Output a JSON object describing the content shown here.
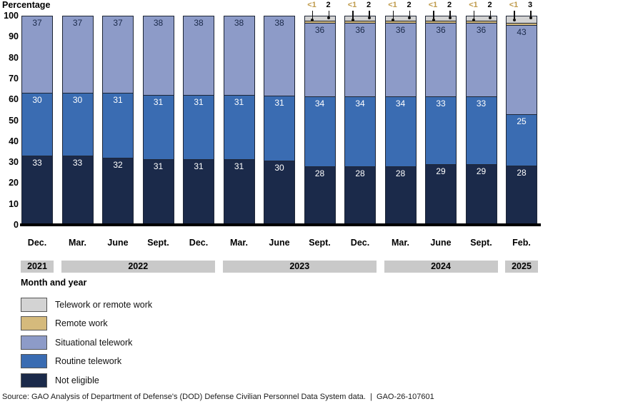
{
  "page": {
    "y_axis_title": "Percentage",
    "x_axis_title": "Month and year",
    "source_line": "Source: GAO Analysis of Department of Defense's (DOD) Defense Civilian Personnel Data System data.  |  GAO-26-107601"
  },
  "chart_data": {
    "type": "bar",
    "stacked": true,
    "title": "",
    "ylabel": "Percentage",
    "xlabel": "Month and year",
    "ylim": [
      0,
      100
    ],
    "yticks": [
      0,
      10,
      20,
      30,
      40,
      50,
      60,
      70,
      80,
      90,
      100
    ],
    "grid": false,
    "categories": [
      "Dec.",
      "Mar.",
      "June",
      "Sept.",
      "Dec.",
      "Mar.",
      "June",
      "Sept.",
      "Dec.",
      "Mar.",
      "June",
      "Sept.",
      "Feb."
    ],
    "year_groups": [
      {
        "label": "2021",
        "start": 0,
        "end": 0
      },
      {
        "label": "2022",
        "start": 1,
        "end": 4
      },
      {
        "label": "2023",
        "start": 5,
        "end": 8
      },
      {
        "label": "2024",
        "start": 9,
        "end": 11
      },
      {
        "label": "2025",
        "start": 12,
        "end": 12
      }
    ],
    "series": [
      {
        "name": "Not eligible",
        "color": "#1b2a4a",
        "label_color": "#ffffff",
        "values": [
          33,
          33,
          32,
          31,
          31,
          31,
          30,
          28,
          28,
          28,
          29,
          29,
          28
        ]
      },
      {
        "name": "Routine telework",
        "color": "#3a6cb2",
        "label_color": "#ffffff",
        "values": [
          30,
          30,
          31,
          31,
          31,
          31,
          31,
          34,
          34,
          34,
          33,
          33,
          25
        ]
      },
      {
        "name": "Situational telework",
        "color": "#8d9bc8",
        "label_color": "#1b2a4a",
        "values": [
          37,
          37,
          37,
          38,
          38,
          38,
          38,
          36,
          36,
          36,
          36,
          36,
          43
        ]
      },
      {
        "name": "Remote work",
        "color": "#d5ba7c",
        "annotation_color": "#bf9a4a",
        "labels": [
          null,
          null,
          null,
          null,
          null,
          null,
          null,
          "<1",
          "<1",
          "<1",
          "<1",
          "<1",
          "<1"
        ]
      },
      {
        "name": "Telework or remote work",
        "color": "#d3d3d3",
        "annotation_color": "#000000",
        "values": [
          null,
          null,
          null,
          null,
          null,
          null,
          null,
          2,
          2,
          2,
          2,
          2,
          3
        ]
      }
    ],
    "legend": {
      "position": "bottom-left",
      "entries": [
        {
          "label": "Telework or remote work",
          "color": "#d3d3d3"
        },
        {
          "label": "Remote work",
          "color": "#d5ba7c"
        },
        {
          "label": "Situational telework",
          "color": "#8d9bc8"
        },
        {
          "label": "Routine telework",
          "color": "#3a6cb2"
        },
        {
          "label": "Not eligible",
          "color": "#1b2a4a"
        }
      ]
    },
    "axis_line_color": "#000000"
  }
}
